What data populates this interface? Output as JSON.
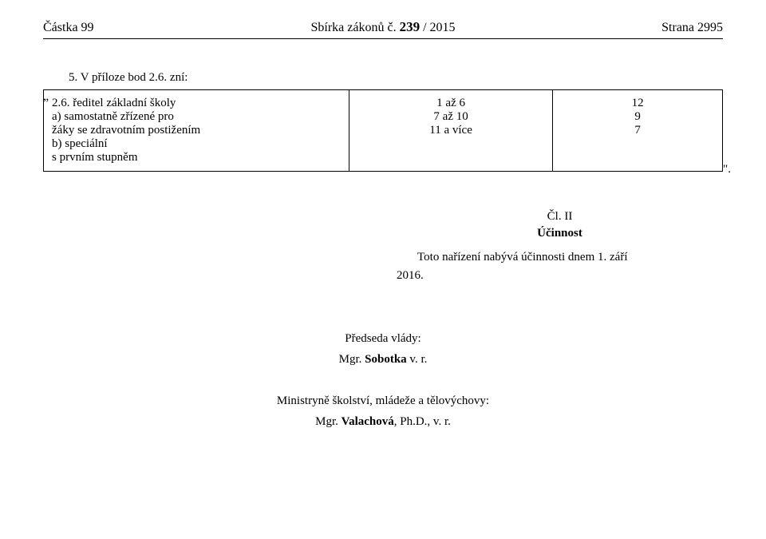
{
  "header": {
    "left": "Částka 99",
    "center_prefix": "Sbírka zákonů č. ",
    "issue_number": "239",
    "center_suffix": " / 2015",
    "right": "Strana 2995"
  },
  "intro": "5. V příloze bod 2.6. zní:",
  "open_quote": "„",
  "close_quote": "\".",
  "table": {
    "col1": {
      "line1": "2.6. ředitel základní školy",
      "line2": "a) samostatně zřízené pro",
      "line3": "žáky se zdravotním postižením",
      "line4": "b) speciální",
      "line5": "s prvním stupněm"
    },
    "col2": {
      "line1": "1 až 6",
      "line2": "7 až 10",
      "line3": "11 a více"
    },
    "col3": {
      "line1": "12",
      "line2": "9",
      "line3": "7"
    }
  },
  "article": {
    "num": "Čl. II",
    "title": "Účinnost",
    "body_pre": "Toto nařízení nabývá účinnosti dnem 1. září ",
    "body_year": "2016."
  },
  "signatures": {
    "sig1_role": "Předseda vlády:",
    "sig1_name_prefix": "Mgr. ",
    "sig1_name_bold": "Sobotka",
    "sig1_name_suffix": " v. r.",
    "sig2_role": "Ministryně školství, mládeže a tělovýchovy:",
    "sig2_name_prefix": "Mgr. ",
    "sig2_name_bold": "Valachová",
    "sig2_name_suffix": ", Ph.D., v. r."
  }
}
